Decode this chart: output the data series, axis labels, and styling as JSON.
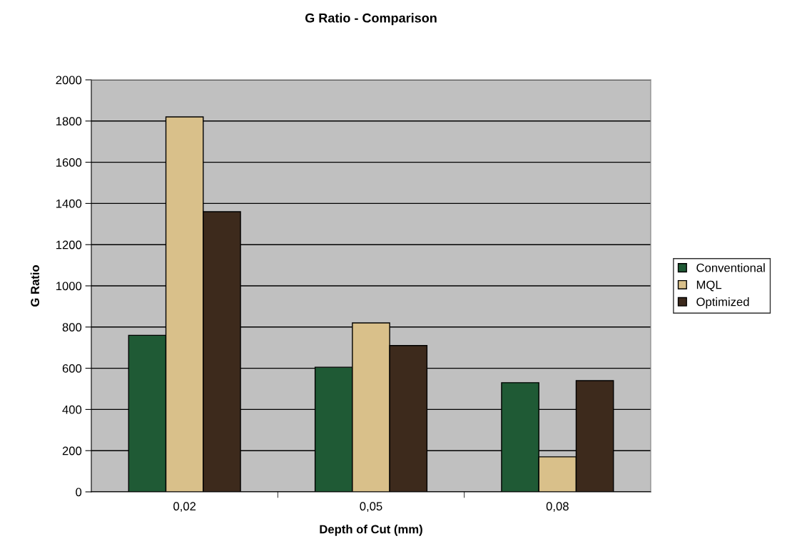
{
  "chart_data": {
    "type": "bar",
    "title": "G Ratio - Comparison",
    "xlabel": "Depth of Cut (mm)",
    "ylabel": "G Ratio",
    "categories": [
      "0,02",
      "0,05",
      "0,08"
    ],
    "series": [
      {
        "name": "Conventional",
        "color": "#1f5a35",
        "values": [
          760,
          605,
          530
        ]
      },
      {
        "name": "MQL",
        "color": "#d9c08a",
        "values": [
          1820,
          820,
          170
        ]
      },
      {
        "name": "Optimized",
        "color": "#3d2a1c",
        "values": [
          1360,
          710,
          540
        ]
      }
    ],
    "ylim": [
      0,
      2000
    ],
    "yticks": [
      0,
      200,
      400,
      600,
      800,
      1000,
      1200,
      1400,
      1600,
      1800,
      2000
    ],
    "grid": "y",
    "legend": "right"
  }
}
